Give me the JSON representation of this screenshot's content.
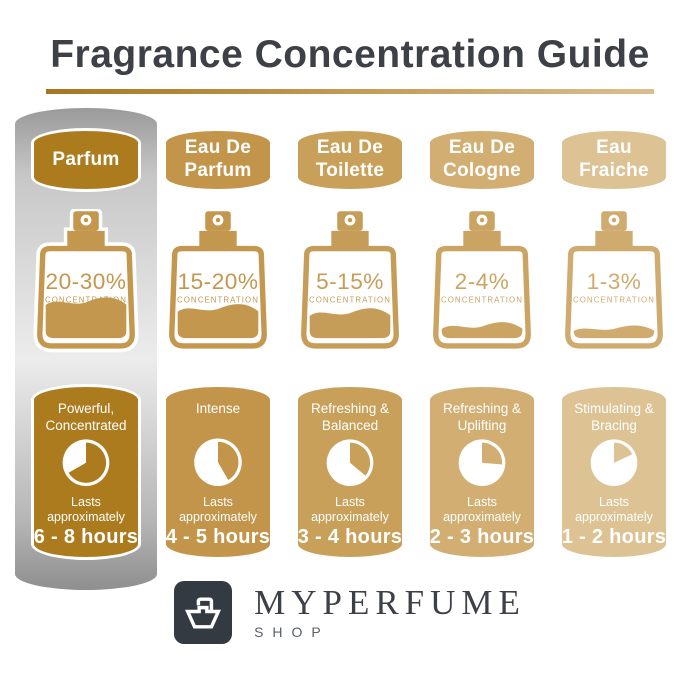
{
  "header": {
    "title": "Fragrance Concentration Guide"
  },
  "columns": [
    {
      "name": "Parfum",
      "concentration": "20-30%",
      "concentration_label": "CONCENTRATION",
      "fill_percent": 43,
      "clock_degrees": 240,
      "description": "Powerful,\nConcentrated",
      "lasts_label": "Lasts approximately",
      "duration": "6 - 8 hours",
      "accent_color": "#ac7b1e",
      "bottle_color": "#c3974e",
      "highlighted": true
    },
    {
      "name": "Eau De\nParfum",
      "concentration": "15-20%",
      "concentration_label": "CONCENTRATION",
      "fill_percent": 35,
      "clock_degrees": 150,
      "description": "Intense",
      "lasts_label": "Lasts approximately",
      "duration": "4 - 5 hours",
      "accent_color": "#c2954a",
      "bottle_color": "#c3974e",
      "highlighted": false
    },
    {
      "name": "Eau De\nToilette",
      "concentration": "5-15%",
      "concentration_label": "CONCENTRATION",
      "fill_percent": 30,
      "clock_degrees": 130,
      "description": "Refreshing &\nBalanced",
      "lasts_label": "Lasts approximately",
      "duration": "3 - 4 hours",
      "accent_color": "#c9a05a",
      "bottle_color": "#c69d58",
      "highlighted": false
    },
    {
      "name": "Eau De\nCologne",
      "concentration": "2-4%",
      "concentration_label": "CONCENTRATION",
      "fill_percent": 14,
      "clock_degrees": 95,
      "description": "Refreshing &\nUplifting",
      "lasts_label": "Lasts approximately",
      "duration": "2 - 3 hours",
      "accent_color": "#d2ae72",
      "bottle_color": "#cba463",
      "highlighted": false
    },
    {
      "name": "Eau\nFraiche",
      "concentration": "1-3%",
      "concentration_label": "CONCENTRATION",
      "fill_percent": 11,
      "clock_degrees": 65,
      "description": "Stimulating &\nBracing",
      "lasts_label": "Lasts approximately",
      "duration": "1 - 2 hours",
      "accent_color": "#ddc294",
      "bottle_color": "#cfab6f",
      "highlighted": false
    }
  ],
  "footer": {
    "brand": "MYPERFUME",
    "sub": "SHOP"
  },
  "palette": {
    "title_text": "#3d4147",
    "underline_from": "#a8761f",
    "underline_to": "#dabf8e",
    "silver_top": "#9a9a9a",
    "silver_mid": "#ececec",
    "silver_bottom": "#8f8f8f",
    "logo_bg": "#343a42",
    "brand_text": "#3d4147",
    "shop_text": "#5b6069"
  }
}
